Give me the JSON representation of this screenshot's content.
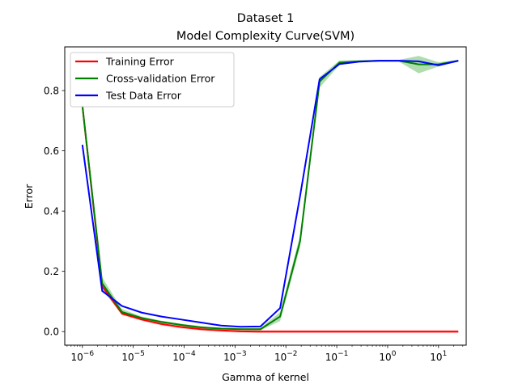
{
  "chart_data": {
    "type": "line",
    "title_line1": "Dataset 1",
    "title_line2": "Model Complexity Curve(SVM)",
    "xlabel": "Gamma of kernel",
    "ylabel": "Error",
    "x_scale": "log",
    "xlim": [
      4.5e-07,
      35
    ],
    "ylim": [
      -0.045,
      0.945
    ],
    "x_ticks": [
      {
        "value": 1e-06,
        "base": "10",
        "exp": "−6"
      },
      {
        "value": 1e-05,
        "base": "10",
        "exp": "−5"
      },
      {
        "value": 0.0001,
        "base": "10",
        "exp": "−4"
      },
      {
        "value": 0.001,
        "base": "10",
        "exp": "−3"
      },
      {
        "value": 0.01,
        "base": "10",
        "exp": "−2"
      },
      {
        "value": 0.1,
        "base": "10",
        "exp": "−1"
      },
      {
        "value": 1,
        "base": "10",
        "exp": "0"
      },
      {
        "value": 10,
        "base": "10",
        "exp": "1"
      }
    ],
    "y_ticks": [
      {
        "value": 0.0,
        "label": "0.0"
      },
      {
        "value": 0.2,
        "label": "0.2"
      },
      {
        "value": 0.4,
        "label": "0.4"
      },
      {
        "value": 0.6,
        "label": "0.6"
      },
      {
        "value": 0.8,
        "label": "0.8"
      }
    ],
    "grid": false,
    "legend_position": "upper-left",
    "x": [
      1e-06,
      2.45e-06,
      6e-06,
      1.47e-05,
      3.6e-05,
      8.8e-05,
      0.000215,
      0.00053,
      0.00129,
      0.00316,
      0.0077,
      0.019,
      0.046,
      0.113,
      0.277,
      0.68,
      1.67,
      4.08,
      10,
      24.5
    ],
    "series": [
      {
        "name": "Training Error",
        "color": "#ff0000",
        "values": [
          0.75,
          0.15,
          0.06,
          0.04,
          0.025,
          0.015,
          0.008,
          0.004,
          0.001,
          0.0,
          0.0,
          0.0,
          0.0,
          0.0,
          0.0,
          0.0,
          0.0,
          0.0,
          0.0,
          0.0
        ],
        "band": 0.005
      },
      {
        "name": "Cross-validation Error",
        "color": "#008000",
        "band_color": "#4fb34f",
        "values": [
          0.75,
          0.16,
          0.065,
          0.045,
          0.032,
          0.022,
          0.014,
          0.01,
          0.008,
          0.008,
          0.05,
          0.3,
          0.83,
          0.893,
          0.897,
          0.899,
          0.899,
          0.887,
          0.887,
          0.899
        ],
        "band_low": [
          0.74,
          0.14,
          0.055,
          0.04,
          0.028,
          0.018,
          0.01,
          0.007,
          0.005,
          0.004,
          0.035,
          0.28,
          0.81,
          0.885,
          0.893,
          0.896,
          0.896,
          0.857,
          0.88,
          0.896
        ],
        "band_high": [
          0.76,
          0.18,
          0.075,
          0.05,
          0.036,
          0.026,
          0.018,
          0.013,
          0.011,
          0.012,
          0.065,
          0.32,
          0.845,
          0.9,
          0.901,
          0.902,
          0.902,
          0.915,
          0.894,
          0.902
        ]
      },
      {
        "name": "Test Data Error",
        "color": "#0000ff",
        "values": [
          0.62,
          0.135,
          0.085,
          0.063,
          0.05,
          0.04,
          0.03,
          0.02,
          0.016,
          0.017,
          0.078,
          0.45,
          0.838,
          0.888,
          0.896,
          0.899,
          0.899,
          0.897,
          0.884,
          0.899
        ]
      }
    ]
  }
}
